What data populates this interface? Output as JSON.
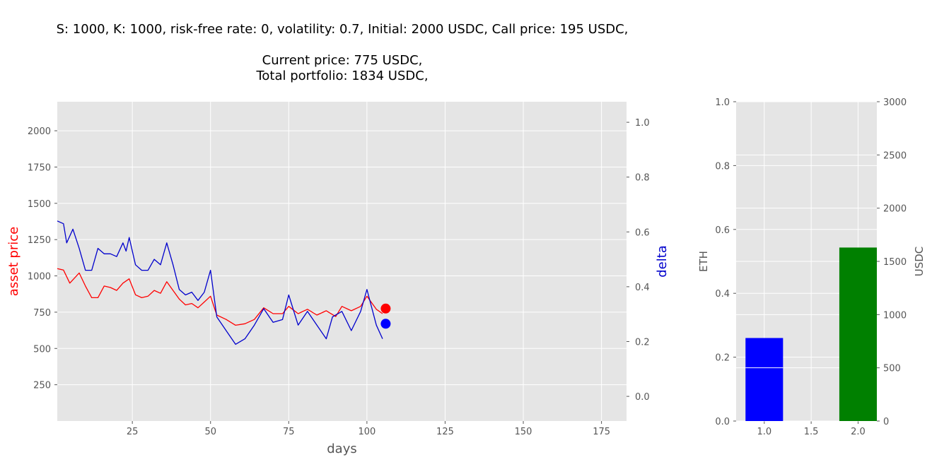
{
  "title": {
    "line1": "S: 1000, K: 1000, risk-free rate: 0, volatility: 0.7,  Initial: 2000 USDC, Call price: 195 USDC,",
    "line2": "Current price: 775 USDC,",
    "line3": "Total portfolio: 1834 USDC,"
  },
  "colors": {
    "price": "#ff0000",
    "delta": "#0000cc",
    "eth_bar": "#0000ff",
    "usdc_bar": "#008000",
    "axes_bg": "#e5e5e5",
    "grid": "#ffffff",
    "tick": "#555555"
  },
  "chart_data": [
    {
      "type": "line",
      "xlabel": "days",
      "ylabel": "asset price",
      "y2label": "delta",
      "xlim": [
        1,
        183
      ],
      "ylim": [
        0,
        2200
      ],
      "y2lim": [
        -0.09,
        1.075
      ],
      "xticks": [
        25,
        50,
        75,
        100,
        125,
        150,
        175
      ],
      "yticks": [
        250,
        500,
        750,
        1000,
        1250,
        1500,
        1750,
        2000
      ],
      "y2ticks": [
        0.0,
        0.2,
        0.4,
        0.6,
        0.8,
        1.0
      ],
      "y2ticklabels": [
        "0.0",
        "0.2",
        "0.4",
        "0.6",
        "0.8",
        "1.0"
      ],
      "grid": true,
      "series": [
        {
          "axis": "left",
          "color": "#ff0000",
          "points": [
            [
              1,
              1050
            ],
            [
              3,
              1040
            ],
            [
              5,
              950
            ],
            [
              8,
              1020
            ],
            [
              10,
              930
            ],
            [
              12,
              850
            ],
            [
              14,
              850
            ],
            [
              16,
              930
            ],
            [
              18,
              920
            ],
            [
              20,
              900
            ],
            [
              22,
              950
            ],
            [
              24,
              980
            ],
            [
              26,
              870
            ],
            [
              28,
              850
            ],
            [
              30,
              860
            ],
            [
              32,
              900
            ],
            [
              34,
              880
            ],
            [
              36,
              960
            ],
            [
              38,
              900
            ],
            [
              40,
              840
            ],
            [
              42,
              800
            ],
            [
              44,
              810
            ],
            [
              46,
              780
            ],
            [
              48,
              820
            ],
            [
              50,
              860
            ],
            [
              52,
              730
            ],
            [
              55,
              700
            ],
            [
              58,
              660
            ],
            [
              61,
              670
            ],
            [
              64,
              700
            ],
            [
              67,
              780
            ],
            [
              70,
              740
            ],
            [
              73,
              740
            ],
            [
              75,
              790
            ],
            [
              78,
              740
            ],
            [
              81,
              770
            ],
            [
              84,
              730
            ],
            [
              87,
              760
            ],
            [
              90,
              720
            ],
            [
              92,
              790
            ],
            [
              95,
              760
            ],
            [
              98,
              790
            ],
            [
              100,
              860
            ],
            [
              103,
              770
            ],
            [
              105,
              740
            ]
          ]
        },
        {
          "axis": "right",
          "color": "#0000cc",
          "points": [
            [
              1,
              0.64
            ],
            [
              3,
              0.63
            ],
            [
              4,
              0.56
            ],
            [
              6,
              0.61
            ],
            [
              8,
              0.54
            ],
            [
              10,
              0.46
            ],
            [
              12,
              0.46
            ],
            [
              14,
              0.54
            ],
            [
              16,
              0.52
            ],
            [
              18,
              0.52
            ],
            [
              20,
              0.51
            ],
            [
              22,
              0.56
            ],
            [
              23,
              0.53
            ],
            [
              24,
              0.58
            ],
            [
              26,
              0.48
            ],
            [
              28,
              0.46
            ],
            [
              30,
              0.46
            ],
            [
              32,
              0.5
            ],
            [
              34,
              0.48
            ],
            [
              36,
              0.56
            ],
            [
              38,
              0.48
            ],
            [
              40,
              0.39
            ],
            [
              42,
              0.37
            ],
            [
              44,
              0.38
            ],
            [
              46,
              0.35
            ],
            [
              48,
              0.38
            ],
            [
              50,
              0.46
            ],
            [
              52,
              0.29
            ],
            [
              55,
              0.24
            ],
            [
              58,
              0.19
            ],
            [
              61,
              0.21
            ],
            [
              64,
              0.26
            ],
            [
              67,
              0.32
            ],
            [
              70,
              0.27
            ],
            [
              73,
              0.28
            ],
            [
              75,
              0.37
            ],
            [
              78,
              0.26
            ],
            [
              81,
              0.31
            ],
            [
              84,
              0.26
            ],
            [
              87,
              0.21
            ],
            [
              89,
              0.29
            ],
            [
              92,
              0.31
            ],
            [
              95,
              0.24
            ],
            [
              98,
              0.31
            ],
            [
              100,
              0.39
            ],
            [
              103,
              0.26
            ],
            [
              105,
              0.21
            ]
          ]
        }
      ],
      "markers": [
        {
          "axis": "left",
          "x": 106,
          "y": 775,
          "color": "#ff0000"
        },
        {
          "axis": "right",
          "x": 106,
          "y": 0.265,
          "color": "#0000ff"
        }
      ]
    },
    {
      "type": "bar",
      "ylabel": "ETH",
      "y2label": "USDC",
      "xlim": [
        0.7,
        2.2
      ],
      "ylim": [
        0.0,
        1.0
      ],
      "y2lim": [
        0,
        3000
      ],
      "xticks": [
        1.0,
        1.5,
        2.0
      ],
      "xticklabels": [
        "1.0",
        "1.5",
        "2.0"
      ],
      "yticks": [
        0.0,
        0.2,
        0.4,
        0.6,
        0.8,
        1.0
      ],
      "yticklabels": [
        "0.0",
        "0.2",
        "0.4",
        "0.6",
        "0.8",
        "1.0"
      ],
      "y2ticks": [
        0,
        500,
        1000,
        1500,
        2000,
        2500,
        3000
      ],
      "grid": true,
      "bars": [
        {
          "x": 1.0,
          "axis": "left",
          "value": 0.26,
          "color": "#0000ff"
        },
        {
          "x": 2.0,
          "axis": "right",
          "value": 1630,
          "color": "#008000"
        }
      ]
    }
  ]
}
